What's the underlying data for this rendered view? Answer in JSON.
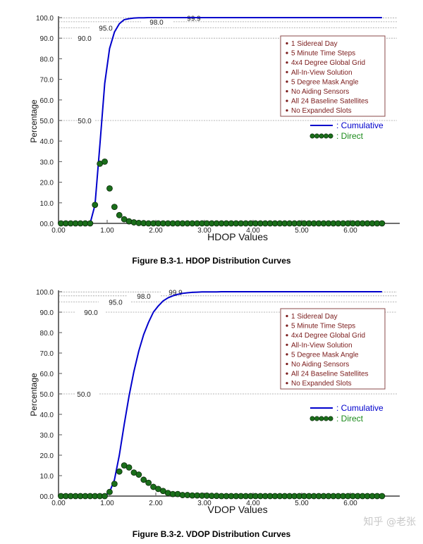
{
  "chart_data": [
    {
      "type": "line",
      "title": "",
      "caption": "Figure B.3-1.  HDOP Distribution Curves",
      "xlabel": "HDOP Values",
      "ylabel": "Percentage",
      "xlim": [
        0,
        7
      ],
      "ylim": [
        0,
        100
      ],
      "xticks": [
        "0.00",
        "1.00",
        "2.00",
        "3.00",
        "4.00",
        "5.00",
        "6.00"
      ],
      "yticks": [
        "00.0",
        "10.0",
        "20.0",
        "30.0",
        "40.0",
        "50.0",
        "60.0",
        "70.0",
        "80.0",
        "90.0",
        "100.0"
      ],
      "reference_lines": [
        {
          "value": 50.0,
          "label": "50.0"
        },
        {
          "value": 90.0,
          "label": "90.0"
        },
        {
          "value": 95.0,
          "label": "95.0"
        },
        {
          "value": 98.0,
          "label": "98.0"
        },
        {
          "value": 99.9,
          "label": "99.9"
        }
      ],
      "x": [
        0.05,
        0.15,
        0.25,
        0.35,
        0.45,
        0.55,
        0.65,
        0.75,
        0.85,
        0.95,
        1.05,
        1.15,
        1.25,
        1.35,
        1.45,
        1.55,
        1.65,
        1.75,
        1.85,
        1.95,
        2.05,
        2.15,
        2.25,
        2.35,
        2.45,
        2.55,
        2.65,
        2.75,
        2.85,
        2.95,
        3.05,
        3.15,
        3.25,
        3.35,
        3.45,
        3.55,
        3.65,
        3.75,
        3.85,
        3.95,
        4.05,
        4.15,
        4.25,
        4.35,
        4.45,
        4.55,
        4.65,
        4.75,
        4.85,
        4.95,
        5.05,
        5.15,
        5.25,
        5.35,
        5.45,
        5.55,
        5.65,
        5.75,
        5.85,
        5.95,
        6.05,
        6.15,
        6.25,
        6.35,
        6.45,
        6.55,
        6.65
      ],
      "series": [
        {
          "name": "Cumulative",
          "color": "#0000cc",
          "style": "line",
          "values": [
            0,
            0,
            0,
            0,
            0,
            0,
            0,
            9,
            38,
            68,
            85,
            93,
            97,
            99,
            99.5,
            99.8,
            99.9,
            99.9,
            100,
            100,
            100,
            100,
            100,
            100,
            100,
            100,
            100,
            100,
            100,
            100,
            100,
            100,
            100,
            100,
            100,
            100,
            100,
            100,
            100,
            100,
            100,
            100,
            100,
            100,
            100,
            100,
            100,
            100,
            100,
            100,
            100,
            100,
            100,
            100,
            100,
            100,
            100,
            100,
            100,
            100,
            100,
            100,
            100,
            100,
            100,
            100,
            100
          ]
        },
        {
          "name": "Direct",
          "color": "#1a6e1a",
          "style": "markers",
          "values": [
            0,
            0,
            0,
            0,
            0,
            0,
            0,
            9,
            29,
            30,
            17,
            8,
            4,
            2,
            1,
            0.5,
            0.2,
            0.1,
            0,
            0,
            0,
            0,
            0,
            0,
            0,
            0,
            0,
            0,
            0,
            0,
            0,
            0,
            0,
            0,
            0,
            0,
            0,
            0,
            0,
            0,
            0,
            0,
            0,
            0,
            0,
            0,
            0,
            0,
            0,
            0,
            0,
            0,
            0,
            0,
            0,
            0,
            0,
            0,
            0,
            0,
            0,
            0,
            0,
            0,
            0,
            0,
            0
          ]
        }
      ],
      "legend": {
        "notes": [
          "1 Sidereal Day",
          "5 Minute Time Steps",
          "4x4 Degree Global Grid",
          "All-In-View Solution",
          "5 Degree Mask Angle",
          "No Aiding Sensors",
          "All 24 Baseline Satellites",
          "No Expanded Slots"
        ],
        "cumulative_label": ": Cumulative",
        "direct_label": ": Direct",
        "position": "upper right"
      },
      "grid": false
    },
    {
      "type": "line",
      "title": "",
      "caption": "Figure B.3-2.  VDOP Distribution Curves",
      "xlabel": "VDOP Values",
      "ylabel": "Percentage",
      "xlim": [
        0,
        7
      ],
      "ylim": [
        0,
        100
      ],
      "xticks": [
        "0.00",
        "1.00",
        "2.00",
        "3.00",
        "4.00",
        "5.00",
        "6.00"
      ],
      "yticks": [
        "00.0",
        "10.0",
        "20.0",
        "30.0",
        "40.0",
        "50.0",
        "60.0",
        "70.0",
        "80.0",
        "90.0",
        "100.0"
      ],
      "reference_lines": [
        {
          "value": 50.0,
          "label": "50.0"
        },
        {
          "value": 90.0,
          "label": "90.0"
        },
        {
          "value": 95.0,
          "label": "95.0"
        },
        {
          "value": 98.0,
          "label": "98.0"
        },
        {
          "value": 99.9,
          "label": "99.9"
        }
      ],
      "x": [
        0.05,
        0.15,
        0.25,
        0.35,
        0.45,
        0.55,
        0.65,
        0.75,
        0.85,
        0.95,
        1.05,
        1.15,
        1.25,
        1.35,
        1.45,
        1.55,
        1.65,
        1.75,
        1.85,
        1.95,
        2.05,
        2.15,
        2.25,
        2.35,
        2.45,
        2.55,
        2.65,
        2.75,
        2.85,
        2.95,
        3.05,
        3.15,
        3.25,
        3.35,
        3.45,
        3.55,
        3.65,
        3.75,
        3.85,
        3.95,
        4.05,
        4.15,
        4.25,
        4.35,
        4.45,
        4.55,
        4.65,
        4.75,
        4.85,
        4.95,
        5.05,
        5.15,
        5.25,
        5.35,
        5.45,
        5.55,
        5.65,
        5.75,
        5.85,
        5.95,
        6.05,
        6.15,
        6.25,
        6.35,
        6.45,
        6.55,
        6.65
      ],
      "series": [
        {
          "name": "Cumulative",
          "color": "#0000cc",
          "style": "line",
          "values": [
            0,
            0,
            0,
            0,
            0,
            0,
            0,
            0,
            0,
            0,
            2,
            8,
            20,
            35,
            49,
            61,
            71,
            79,
            85,
            90,
            93,
            95.5,
            97,
            98,
            98.7,
            99.2,
            99.5,
            99.7,
            99.8,
            99.9,
            99.9,
            99.9,
            99.9,
            100,
            100,
            100,
            100,
            100,
            100,
            100,
            100,
            100,
            100,
            100,
            100,
            100,
            100,
            100,
            100,
            100,
            100,
            100,
            100,
            100,
            100,
            100,
            100,
            100,
            100,
            100,
            100,
            100,
            100,
            100,
            100,
            100,
            100
          ]
        },
        {
          "name": "Direct",
          "color": "#1a6e1a",
          "style": "markers",
          "values": [
            0,
            0,
            0,
            0,
            0,
            0,
            0,
            0,
            0,
            0,
            2,
            6,
            12,
            15,
            14,
            11.5,
            10.5,
            8,
            6.5,
            4.5,
            3.5,
            2.5,
            1.5,
            1,
            1,
            0.5,
            0.5,
            0.3,
            0.3,
            0.2,
            0.2,
            0.1,
            0.1,
            0,
            0,
            0,
            0,
            0,
            0,
            0,
            0,
            0,
            0,
            0,
            0,
            0,
            0,
            0,
            0,
            0,
            0,
            0,
            0,
            0,
            0,
            0,
            0,
            0,
            0,
            0,
            0,
            0,
            0,
            0,
            0,
            0,
            0
          ]
        }
      ],
      "legend": {
        "notes": [
          "1 Sidereal Day",
          "5 Minute Time Steps",
          "4x4 Degree Global Grid",
          "All-In-View Solution",
          "5 Degree Mask Angle",
          "No Aiding Sensors",
          "All 24 Baseline Satellites",
          "No Expanded Slots"
        ],
        "cumulative_label": ": Cumulative",
        "direct_label": ": Direct",
        "position": "upper right"
      },
      "grid": false
    }
  ],
  "watermark": "知乎 @老张",
  "colors": {
    "cumulative": "#0000cc",
    "direct_fill": "#1a6e1a",
    "direct_stroke": "#0a2a0a",
    "notes_text": "#7a1a1a",
    "notes_border": "#8a4a4a",
    "axis": "#6e6e6e",
    "ref_line": "#a0a0a0"
  }
}
